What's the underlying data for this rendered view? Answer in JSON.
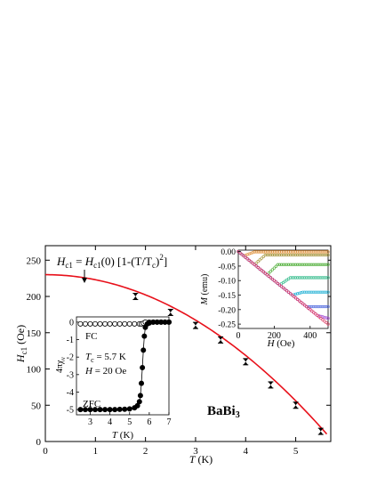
{
  "chart_data": [
    {
      "type": "scatter",
      "role": "main",
      "xlabel": "T (K)",
      "ylabel": "H_c1 (Oe)",
      "xlim": [
        0,
        5.7
      ],
      "ylim": [
        0,
        270
      ],
      "xticks": [
        0,
        1,
        2,
        3,
        4,
        5
      ],
      "yticks": [
        0,
        50,
        100,
        150,
        200,
        250
      ],
      "grid": false,
      "formula": "H_c1 = H_c1(0) [1-(T/T_c)^2]",
      "compound": "BaBi3",
      "series": [
        {
          "x": [
            1.8,
            2.5,
            3.0,
            3.5,
            4.0,
            4.5,
            5.0,
            5.5
          ],
          "y": [
            200,
            178,
            160,
            140,
            110,
            78,
            50,
            14
          ]
        }
      ],
      "fit": {
        "H0": 230,
        "Tc": 5.75,
        "color": "#e8101a"
      }
    },
    {
      "type": "line",
      "role": "inset-susceptibility",
      "xlabel": "T (K)",
      "ylabel": "4πχ_v",
      "xlim": [
        2.3,
        7
      ],
      "ylim": [
        -5.3,
        0.3
      ],
      "xticks": [
        3,
        4,
        5,
        6,
        7
      ],
      "yticks": [
        0,
        -1,
        -2,
        -3,
        -4,
        -5
      ],
      "labels": {
        "fc": "FC",
        "zfc": "ZFC",
        "tc": "T_c = 5.7 K",
        "h": "H = 20 Oe"
      },
      "series": [
        {
          "name": "FC",
          "x": [
            2.5,
            2.75,
            3.0,
            3.25,
            3.5,
            3.75,
            4.0,
            4.25,
            4.5,
            4.75,
            5.0,
            5.25,
            5.5,
            5.6,
            5.7,
            5.8,
            6.0,
            6.2,
            6.4,
            6.6,
            6.8,
            7.0
          ],
          "y": [
            -0.1,
            -0.1,
            -0.1,
            -0.1,
            -0.1,
            -0.1,
            -0.1,
            -0.1,
            -0.1,
            -0.1,
            -0.1,
            -0.1,
            -0.1,
            -0.1,
            -0.06,
            0,
            0,
            0,
            0,
            0,
            0,
            0
          ]
        },
        {
          "name": "ZFC",
          "x": [
            2.5,
            2.75,
            3.0,
            3.25,
            3.5,
            3.75,
            4.0,
            4.25,
            4.5,
            4.75,
            5.0,
            5.25,
            5.4,
            5.5,
            5.55,
            5.6,
            5.65,
            5.7,
            5.75,
            5.8,
            5.9,
            6.0,
            6.2,
            6.4,
            6.6,
            6.8,
            7.0
          ],
          "y": [
            -5.0,
            -5.0,
            -5.0,
            -5.0,
            -5.0,
            -5.0,
            -5.0,
            -5.0,
            -4.99,
            -4.98,
            -4.96,
            -4.9,
            -4.78,
            -4.55,
            -4.2,
            -3.5,
            -2.6,
            -1.6,
            -0.8,
            -0.3,
            -0.1,
            -0.05,
            0,
            0,
            0,
            0,
            0
          ]
        }
      ]
    },
    {
      "type": "line",
      "role": "inset-magnetization",
      "xlabel": "H (Oe)",
      "ylabel": "M (emu)",
      "xlim": [
        0,
        500
      ],
      "ylim": [
        -0.265,
        0.005
      ],
      "xticks": [
        0,
        200,
        400
      ],
      "yticks": [
        0.0,
        -0.05,
        -0.1,
        -0.15,
        -0.2,
        -0.25
      ],
      "ytick_labels": [
        "0.00",
        "-0.05",
        "-0.10",
        "-0.15",
        "-0.20",
        "-0.25"
      ],
      "series": [
        {
          "color": "#e0913a",
          "slope": -0.0005,
          "hc": 30,
          "flat": -0.001
        },
        {
          "color": "#a99a45",
          "slope": -0.0005,
          "hc": 90,
          "flat": -0.012
        },
        {
          "color": "#53b03d",
          "slope": -0.0005,
          "hc": 160,
          "flat": -0.045
        },
        {
          "color": "#38bd8e",
          "slope": -0.0005,
          "hc": 230,
          "flat": -0.09
        },
        {
          "color": "#27b3d6",
          "slope": -0.0005,
          "hc": 300,
          "flat": -0.14
        },
        {
          "color": "#5b73e0",
          "slope": -0.0005,
          "hc": 380,
          "flat": -0.19
        },
        {
          "color": "#a64fd6",
          "slope": -0.0005,
          "hc": 440,
          "flat": -0.23
        },
        {
          "color": "#e0466a",
          "slope": -0.0005,
          "hc": 520,
          "flat": -0.26
        }
      ]
    }
  ]
}
